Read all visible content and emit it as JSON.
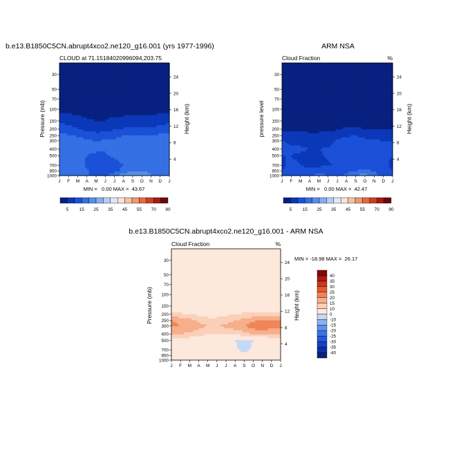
{
  "chart_data": [
    {
      "type": "heatmap",
      "id": "model",
      "title": "b.e13.B1850C5CN.abrupt4xco2.ne120_g16.001 (yrs 1977-1996)",
      "subtitle_left": "CLOUD at 71.15184020996094,203.75",
      "subtitle_right": "",
      "ylabel": "Pressure (mb)",
      "ylabel_right": "Height (km)",
      "x_ticks": [
        "J",
        "F",
        "M",
        "A",
        "M",
        "J",
        "J",
        "A",
        "S",
        "O",
        "N",
        "D",
        "J"
      ],
      "pressure_ticks": [
        "30",
        "50",
        "70",
        "100",
        "150",
        "200",
        "250",
        "300",
        "400",
        "500",
        "700",
        "850",
        "1000"
      ],
      "height_ticks": [
        "24",
        "20",
        "16",
        "12",
        "8",
        "4"
      ],
      "min_label": "0.00",
      "max_label": "43.67",
      "stats_text": "MIN =   0.00 MAX =  43.67",
      "ylim_mb": [
        1000,
        20
      ],
      "levels": [
        5,
        15,
        25,
        35,
        45,
        55,
        70,
        90
      ],
      "level_labels": [
        "5",
        "15",
        "25",
        "35",
        "45",
        "55",
        "70",
        "90"
      ],
      "colors": [
        "#08207f",
        "#0a38b8",
        "#1b50d8",
        "#3570e4",
        "#5b8eea",
        "#86aef0",
        "#b4cff3",
        "#dce8f8",
        "#fbe2d2",
        "#f6c2a4",
        "#f09a72",
        "#e56a44",
        "#d13c24",
        "#a81a12",
        "#6e0808"
      ],
      "grid": {
        "pressures": [
          20,
          100,
          150,
          200,
          250,
          300,
          400,
          500,
          700,
          850,
          1000
        ],
        "values": [
          [
            1,
            1,
            1,
            1,
            1,
            1,
            1,
            1,
            1,
            1,
            1,
            1,
            1
          ],
          [
            2,
            2,
            2,
            2,
            2,
            2,
            2,
            2,
            2,
            2,
            2,
            2,
            2
          ],
          [
            12,
            10,
            8,
            6,
            5,
            5,
            7,
            7,
            8,
            7,
            8,
            10,
            12
          ],
          [
            22,
            20,
            16,
            12,
            10,
            11,
            14,
            16,
            18,
            16,
            17,
            19,
            22
          ],
          [
            28,
            26,
            24,
            22,
            20,
            20,
            22,
            25,
            27,
            25,
            25,
            27,
            28
          ],
          [
            32,
            30,
            28,
            26,
            25,
            26,
            27,
            29,
            31,
            30,
            31,
            32,
            32
          ],
          [
            30,
            30,
            29,
            28,
            27,
            26,
            28,
            30,
            32,
            31,
            31,
            31,
            30
          ],
          [
            27,
            28,
            27,
            25,
            23,
            24,
            27,
            30,
            31,
            30,
            29,
            28,
            27
          ],
          [
            28,
            30,
            29,
            24,
            18,
            17,
            20,
            25,
            30,
            30,
            31,
            30,
            28
          ],
          [
            30,
            32,
            31,
            26,
            18,
            18,
            21,
            29,
            34,
            35,
            33,
            32,
            30
          ],
          [
            26,
            28,
            29,
            26,
            22,
            24,
            31,
            40,
            44,
            40,
            36,
            30,
            26
          ]
        ]
      }
    },
    {
      "type": "heatmap",
      "id": "obs",
      "title": "ARM NSA",
      "subtitle_left": "Cloud Fraction",
      "subtitle_right": "%",
      "ylabel": "pressure level",
      "ylabel_right": "Height (km)",
      "x_ticks": [
        "J",
        "F",
        "M",
        "A",
        "M",
        "J",
        "J",
        "A",
        "S",
        "O",
        "N",
        "D",
        "J"
      ],
      "pressure_ticks": [
        "30",
        "50",
        "70",
        "100",
        "150",
        "200",
        "250",
        "300",
        "400",
        "500",
        "700",
        "850",
        "1000"
      ],
      "height_ticks": [
        "24",
        "20",
        "16",
        "12",
        "8",
        "4"
      ],
      "min_label": "0.00",
      "max_label": "42.47",
      "stats_text": "MIN =   0.00 MAX =  42.47",
      "ylim_mb": [
        1000,
        20
      ],
      "levels": [
        5,
        15,
        25,
        35,
        45,
        55,
        70,
        90
      ],
      "level_labels": [
        "5",
        "15",
        "25",
        "35",
        "45",
        "55",
        "70",
        "90"
      ],
      "colors": [
        "#08207f",
        "#0a38b8",
        "#1b50d8",
        "#3570e4",
        "#5b8eea",
        "#86aef0",
        "#b4cff3",
        "#dce8f8",
        "#fbe2d2",
        "#f6c2a4",
        "#f09a72",
        "#e56a44",
        "#d13c24",
        "#a81a12",
        "#6e0808"
      ],
      "grid": {
        "pressures": [
          20,
          150,
          200,
          250,
          300,
          400,
          500,
          700,
          850,
          1000
        ],
        "values": [
          [
            1,
            1,
            1,
            1,
            1,
            1,
            1,
            1,
            1,
            1,
            1,
            1,
            1
          ],
          [
            2,
            2,
            2,
            2,
            2,
            2,
            2,
            2,
            2,
            2,
            2,
            2,
            2
          ],
          [
            4,
            4,
            3,
            3,
            3,
            3,
            4,
            6,
            6,
            5,
            4,
            4,
            4
          ],
          [
            10,
            9,
            8,
            7,
            7,
            9,
            12,
            14,
            15,
            13,
            12,
            11,
            10
          ],
          [
            15,
            14,
            13,
            12,
            11,
            12,
            16,
            18,
            19,
            17,
            16,
            15,
            15
          ],
          [
            17,
            16,
            16,
            15,
            15,
            16,
            18,
            20,
            21,
            20,
            19,
            18,
            17
          ],
          [
            15,
            15,
            14,
            13,
            14,
            16,
            19,
            19,
            19,
            18,
            17,
            16,
            15
          ],
          [
            14,
            16,
            15,
            13,
            13,
            14,
            16,
            18,
            18,
            19,
            18,
            16,
            14
          ],
          [
            15,
            17,
            18,
            18,
            22,
            20,
            18,
            21,
            25,
            28,
            24,
            18,
            15
          ],
          [
            18,
            20,
            22,
            24,
            28,
            25,
            22,
            28,
            35,
            40,
            30,
            22,
            18
          ]
        ]
      }
    },
    {
      "type": "heatmap",
      "id": "diff",
      "title": "b.e13.B1850C5CN.abrupt4xco2.ne120_g16.001 - ARM NSA",
      "subtitle_left": "Cloud Fraction",
      "subtitle_right": "%",
      "ylabel": "Pressure (mb)",
      "ylabel_right": "Height (km)",
      "x_ticks": [
        "J",
        "F",
        "M",
        "A",
        "M",
        "J",
        "J",
        "A",
        "S",
        "O",
        "N",
        "D",
        "J"
      ],
      "pressure_ticks": [
        "30",
        "50",
        "70",
        "100",
        "150",
        "200",
        "250",
        "300",
        "400",
        "500",
        "700",
        "850",
        "1000"
      ],
      "height_ticks": [
        "24",
        "20",
        "16",
        "12",
        "8",
        "4"
      ],
      "min_label": "-18.98",
      "max_label": "26.17",
      "stats_text": "MIN = -18.98 MAX =  26.17",
      "ylim_mb": [
        1000,
        20
      ],
      "levels": [
        -40,
        -35,
        -30,
        -25,
        -20,
        -15,
        -10,
        0,
        10,
        15,
        20,
        25,
        30,
        35,
        40
      ],
      "level_labels": [
        "-40",
        "-35",
        "-30",
        "-25",
        "-20",
        "-15",
        "-10",
        "0",
        "10",
        "15",
        "20",
        "25",
        "30",
        "35",
        "40"
      ],
      "colors": [
        "#08207f",
        "#0c2fa0",
        "#1541c2",
        "#2258db",
        "#3a73e6",
        "#5d92ec",
        "#8cb2f1",
        "#c4d9f6",
        "#fde8dc",
        "#fbd0b8",
        "#f7ae8a",
        "#f18558",
        "#e55a33",
        "#cf341e",
        "#ad1a12",
        "#800808"
      ],
      "grid": {
        "pressures": [
          20,
          50,
          70,
          100,
          150,
          200,
          250,
          300,
          400,
          500,
          700,
          850,
          1000
        ],
        "values": [
          [
            3,
            3,
            3,
            3,
            3,
            3,
            3,
            3,
            3,
            3,
            3,
            3,
            3
          ],
          [
            3,
            3,
            3,
            3,
            3,
            3,
            3,
            2,
            2,
            3,
            3,
            3,
            3
          ],
          [
            3,
            3,
            3,
            3,
            3,
            3,
            3,
            1,
            1,
            3,
            3,
            3,
            3
          ],
          [
            3,
            3,
            3,
            3,
            3,
            3,
            3,
            3,
            3,
            3,
            3,
            3,
            3
          ],
          [
            4,
            4,
            4,
            4,
            4,
            4,
            4,
            4,
            4,
            4,
            4,
            4,
            4
          ],
          [
            12,
            11,
            10,
            9,
            8,
            8,
            9,
            10,
            11,
            12,
            12,
            12,
            12
          ],
          [
            20,
            19,
            17,
            14,
            12,
            12,
            13,
            15,
            17,
            19,
            21,
            21,
            20
          ],
          [
            21,
            20,
            19,
            17,
            15,
            15,
            16,
            18,
            20,
            23,
            25,
            22,
            21
          ],
          [
            15,
            15,
            14,
            12,
            11,
            11,
            11,
            12,
            13,
            15,
            16,
            15,
            15
          ],
          [
            6,
            6,
            6,
            5,
            4,
            3,
            2,
            0,
            -1,
            0,
            3,
            6,
            6
          ],
          [
            4,
            2,
            4,
            3,
            1,
            3,
            4,
            1,
            -2,
            1,
            4,
            4,
            4
          ],
          [
            3,
            2,
            3,
            2,
            3,
            3,
            3,
            3,
            3,
            2,
            3,
            3,
            3
          ],
          [
            8,
            6,
            5,
            4,
            4,
            4,
            4,
            4,
            4,
            6,
            8,
            8,
            8
          ]
        ]
      }
    }
  ]
}
